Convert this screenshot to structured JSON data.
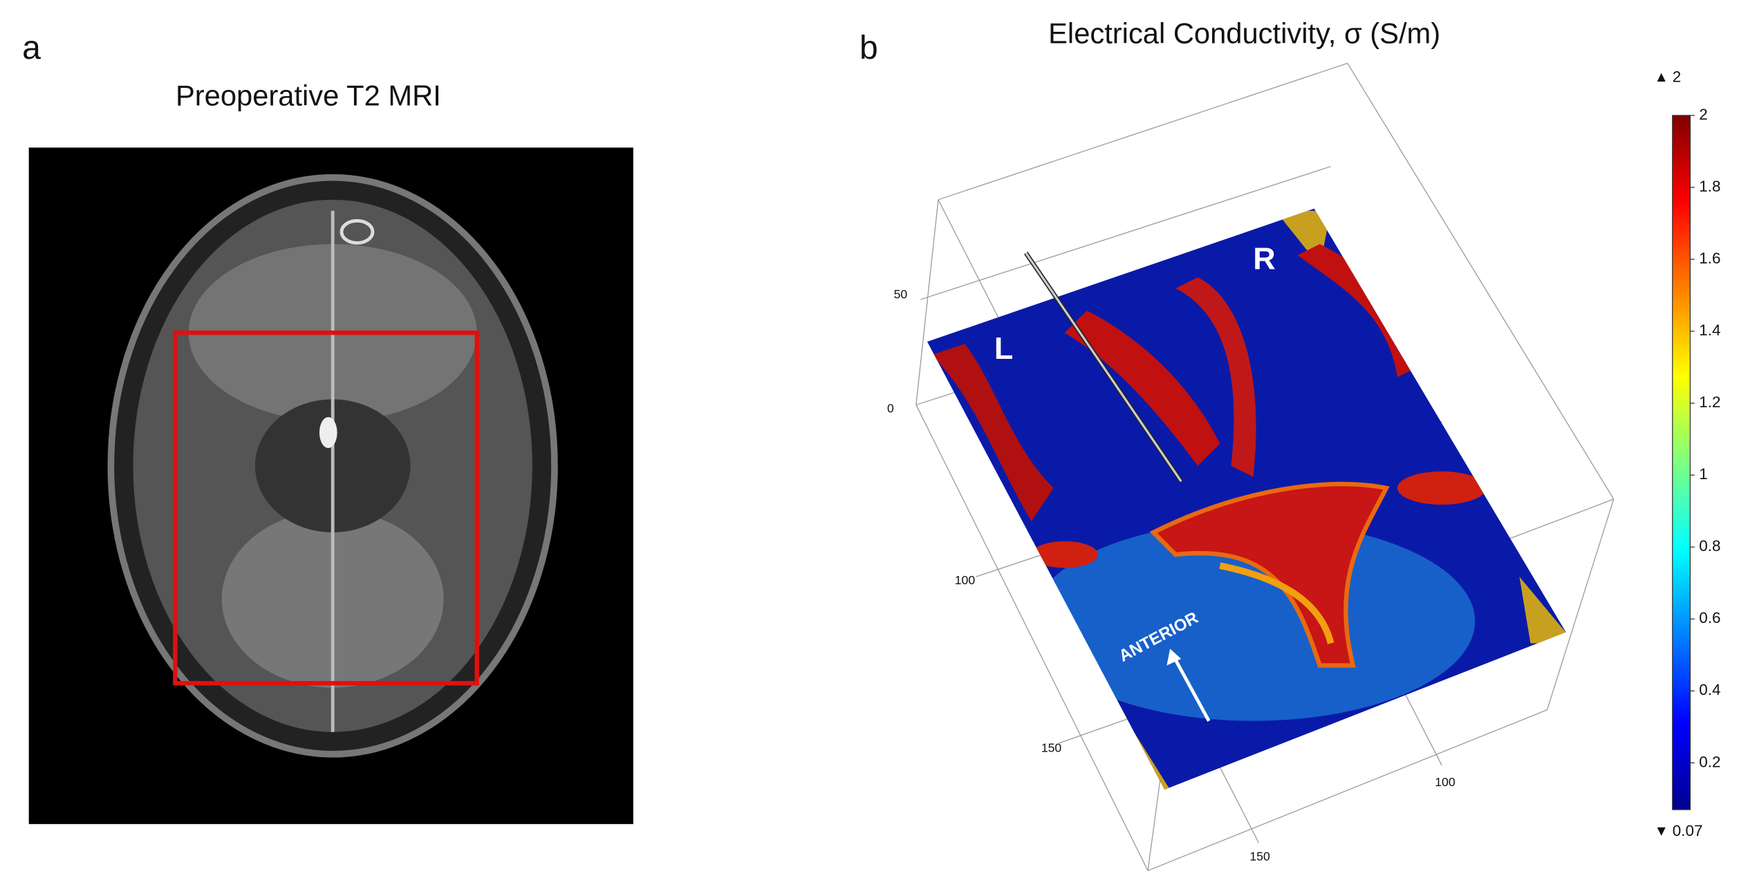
{
  "panel_a": {
    "label": "a",
    "title": "Preoperative T2 MRI"
  },
  "panel_b": {
    "label": "b",
    "title": "Electrical Conductivity, σ (S/m)",
    "z_ticks": [
      50,
      0
    ],
    "y_ticks": [
      100,
      150
    ],
    "x_ticks": [
      100,
      150
    ],
    "annotations": {
      "left": "L",
      "right": "R",
      "direction": "ANTERIOR"
    },
    "colorbar": {
      "min": 0.07,
      "max": 2,
      "ticks": [
        2,
        1.8,
        1.6,
        1.4,
        1.2,
        1,
        0.8,
        0.6,
        0.4,
        0.2
      ]
    }
  }
}
